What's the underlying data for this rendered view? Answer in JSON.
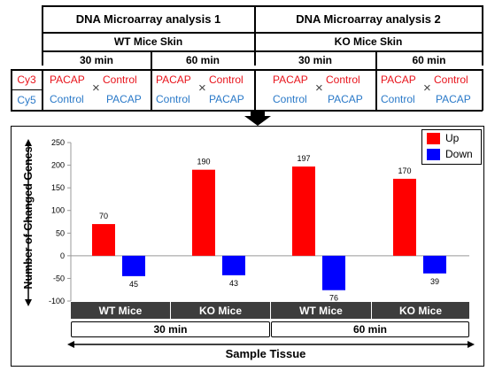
{
  "header": {
    "analysis1": "DNA Microarray analysis 1",
    "analysis2": "DNA Microarray analysis 2",
    "tissue1": "WT Mice Skin",
    "tissue2": "KO Mice Skin",
    "times": [
      "30 min",
      "60 min",
      "30 min",
      "60 min"
    ],
    "row_labels": {
      "cy3": "Cy3",
      "cy5": "Cy5"
    },
    "cy3": [
      "PACAP",
      "Control",
      "PACAP",
      "Control",
      "PACAP",
      "Control",
      "PACAP",
      "Control"
    ],
    "cy5": [
      "Control",
      "PACAP",
      "Control",
      "PACAP",
      "Control",
      "PACAP",
      "Control",
      "PACAP"
    ],
    "cross_symbol": "×"
  },
  "chart_data": {
    "type": "bar",
    "categories": [
      "WT Mice",
      "KO Mice",
      "WT Mice",
      "KO Mice"
    ],
    "time_groups": [
      "30 min",
      "60 min"
    ],
    "series": [
      {
        "name": "Up",
        "values": [
          70,
          190,
          197,
          170
        ],
        "color": "#ff0000"
      },
      {
        "name": "Down",
        "values": [
          -45,
          -43,
          -76,
          -39
        ],
        "color": "#0000ff"
      }
    ],
    "data_labels": {
      "up": [
        "70",
        "190",
        "197",
        "170"
      ],
      "down": [
        "45",
        "43",
        "76",
        "39"
      ]
    },
    "xlabel": "Sample Tissue",
    "ylabel": "Number of Changed Genes",
    "ylim": [
      -100,
      250
    ],
    "yticks": [
      250,
      200,
      150,
      100,
      50,
      0,
      -50,
      -100
    ],
    "legend_position": "top-right",
    "grid": false
  }
}
